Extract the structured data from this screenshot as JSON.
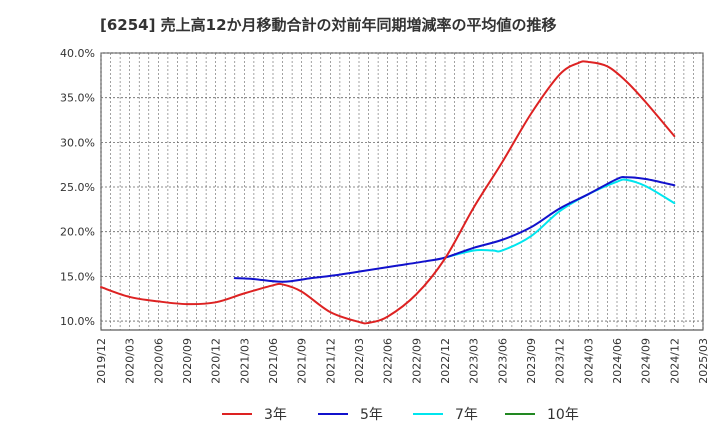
{
  "chart_data": {
    "type": "line",
    "title": "[6254]  売上高12か月移動合計の対前年同期増減率の平均値の推移",
    "xlabel": "",
    "ylabel": "",
    "ylim": [
      9.0,
      40.0
    ],
    "yticks": [
      10.0,
      15.0,
      20.0,
      25.0,
      30.0,
      35.0,
      40.0
    ],
    "ytick_labels": [
      "10.0%",
      "15.0%",
      "20.0%",
      "25.0%",
      "30.0%",
      "35.0%",
      "40.0%"
    ],
    "x_start": "2019/12",
    "x_end": "2025/03",
    "x_tick_labels": [
      "2019/12",
      "2020/03",
      "2020/06",
      "2020/09",
      "2020/12",
      "2021/03",
      "2021/06",
      "2021/09",
      "2021/12",
      "2022/03",
      "2022/06",
      "2022/09",
      "2022/12",
      "2023/03",
      "2023/06",
      "2023/09",
      "2023/12",
      "2024/03",
      "2024/06",
      "2024/09",
      "2024/12",
      "2025/03"
    ],
    "grid": true,
    "series": [
      {
        "name": "3年",
        "color": "#dd2222",
        "x": [
          "2019/12",
          "2020/03",
          "2020/06",
          "2020/09",
          "2020/12",
          "2021/03",
          "2021/06",
          "2021/07",
          "2021/09",
          "2021/12",
          "2022/03",
          "2022/04",
          "2022/06",
          "2022/09",
          "2022/12",
          "2023/03",
          "2023/06",
          "2023/09",
          "2023/12",
          "2024/02",
          "2024/03",
          "2024/05",
          "2024/07",
          "2024/09",
          "2024/12"
        ],
        "values": [
          13.8,
          12.7,
          12.2,
          11.9,
          12.1,
          13.1,
          14.0,
          14.1,
          13.3,
          11.0,
          9.9,
          9.8,
          10.5,
          13.0,
          17.0,
          22.7,
          27.8,
          33.2,
          37.6,
          38.9,
          39.0,
          38.5,
          36.8,
          34.5,
          30.7
        ]
      },
      {
        "name": "5年",
        "color": "#1111cc",
        "x": [
          "2021/02",
          "2021/04",
          "2021/07",
          "2021/10",
          "2022/01",
          "2022/04",
          "2022/07",
          "2022/10",
          "2022/12",
          "2023/03",
          "2023/06",
          "2023/09",
          "2023/12",
          "2024/03",
          "2024/06",
          "2024/07",
          "2024/09",
          "2024/12"
        ],
        "values": [
          14.8,
          14.7,
          14.4,
          14.8,
          15.2,
          15.7,
          16.2,
          16.7,
          17.1,
          18.2,
          19.1,
          20.5,
          22.6,
          24.2,
          25.9,
          26.1,
          25.9,
          25.2
        ]
      },
      {
        "name": "7年",
        "color": "#00e5ee",
        "x": [
          "2022/12",
          "2023/03",
          "2023/05",
          "2023/06",
          "2023/09",
          "2023/12",
          "2024/03",
          "2024/06",
          "2024/07",
          "2024/09",
          "2024/12"
        ],
        "values": [
          17.1,
          17.9,
          17.9,
          17.9,
          19.5,
          22.3,
          24.2,
          25.6,
          25.8,
          25.1,
          23.2
        ]
      },
      {
        "name": "10年",
        "color": "#228822",
        "x": [],
        "values": []
      }
    ]
  }
}
